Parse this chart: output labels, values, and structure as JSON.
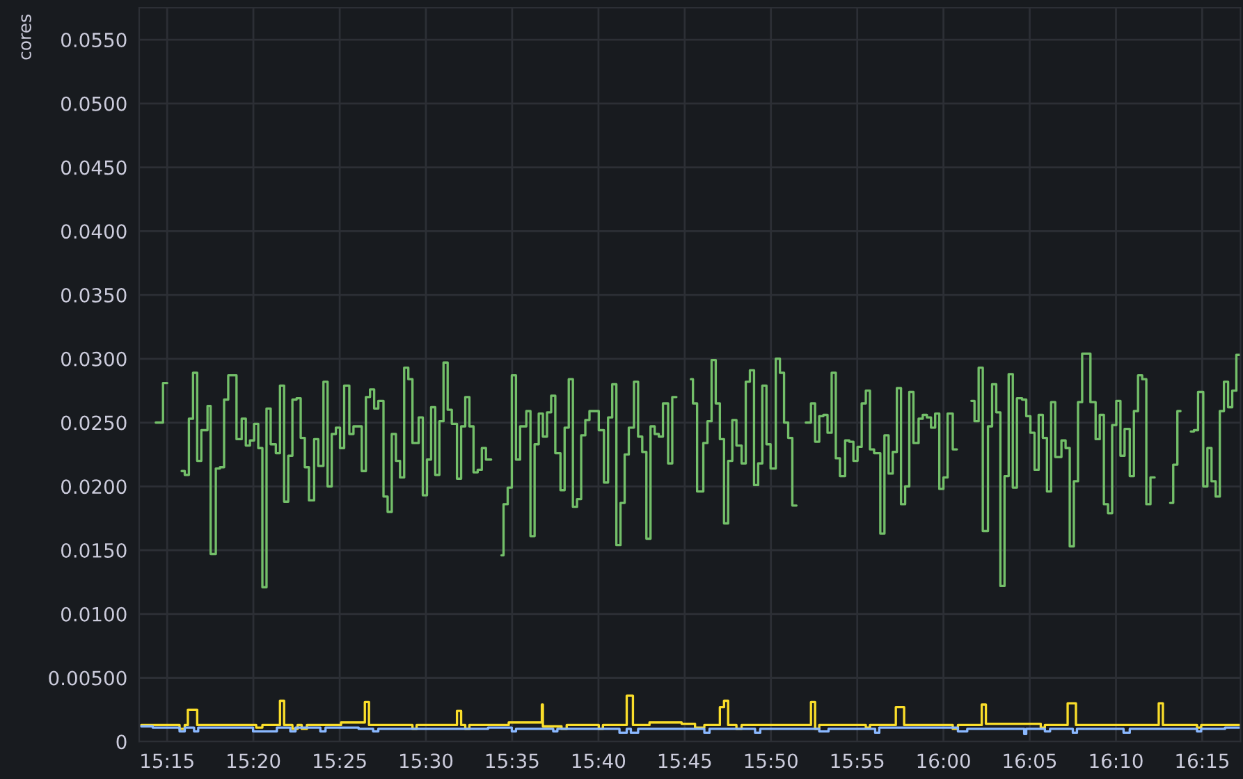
{
  "chart_data": {
    "type": "step",
    "ylabel": "cores",
    "grid": true,
    "xlim": [
      15.223,
      16.287
    ],
    "xticks": [
      {
        "value": 15.25,
        "label": "15:15"
      },
      {
        "value": 15.3333,
        "label": "15:20"
      },
      {
        "value": 15.4167,
        "label": "15:25"
      },
      {
        "value": 15.5,
        "label": "15:30"
      },
      {
        "value": 15.5833,
        "label": "15:35"
      },
      {
        "value": 15.6667,
        "label": "15:40"
      },
      {
        "value": 15.75,
        "label": "15:45"
      },
      {
        "value": 15.8333,
        "label": "15:50"
      },
      {
        "value": 15.9167,
        "label": "15:55"
      },
      {
        "value": 16.0,
        "label": "16:00"
      },
      {
        "value": 16.0833,
        "label": "16:05"
      },
      {
        "value": 16.1667,
        "label": "16:10"
      },
      {
        "value": 16.25,
        "label": "16:15"
      }
    ],
    "ylim": [
      0,
      0.0575
    ],
    "yticks": [
      0,
      {
        "value": 0.005,
        "label": "0.00500"
      },
      {
        "value": 0.01,
        "label": "0.0100"
      },
      {
        "value": 0.015,
        "label": "0.0150"
      },
      {
        "value": 0.02,
        "label": "0.0200"
      },
      {
        "value": 0.025,
        "label": "0.0250"
      },
      {
        "value": 0.03,
        "label": "0.0300"
      },
      {
        "value": 0.035,
        "label": "0.0350"
      },
      {
        "value": 0.04,
        "label": "0.0400"
      },
      {
        "value": 0.045,
        "label": "0.0450"
      },
      {
        "value": 0.05,
        "label": "0.0500"
      },
      {
        "value": 0.055,
        "label": "0.0550"
      }
    ],
    "series": [
      {
        "color": "#73bf69",
        "x": [
          15.239,
          15.246,
          15.25,
          15.264,
          15.267,
          15.271,
          15.275,
          15.279,
          15.283,
          15.289,
          15.292,
          15.297,
          15.301,
          15.305,
          15.309,
          15.317,
          15.322,
          15.326,
          15.33,
          15.334,
          15.338,
          15.342,
          15.346,
          15.35,
          15.355,
          15.359,
          15.363,
          15.367,
          15.371,
          15.375,
          15.379,
          15.383,
          15.387,
          15.392,
          15.396,
          15.401,
          15.405,
          15.409,
          15.413,
          15.417,
          15.421,
          15.426,
          15.43,
          15.438,
          15.442,
          15.446,
          15.45,
          15.454,
          15.459,
          15.463,
          15.467,
          15.471,
          15.475,
          15.479,
          15.483,
          15.487,
          15.493,
          15.497,
          15.501,
          15.505,
          15.509,
          15.513,
          15.517,
          15.521,
          15.525,
          15.53,
          15.534,
          15.538,
          15.542,
          15.546,
          15.55,
          15.554,
          15.558,
          15.563,
          15.573,
          15.575,
          15.579,
          15.583,
          15.587,
          15.591,
          15.597,
          15.601,
          15.605,
          15.609,
          15.613,
          15.617,
          15.621,
          15.625,
          15.63,
          15.634,
          15.638,
          15.642,
          15.646,
          15.65,
          15.654,
          15.658,
          15.667,
          15.672,
          15.676,
          15.68,
          15.684,
          15.688,
          15.692,
          15.696,
          15.701,
          15.705,
          15.709,
          15.713,
          15.717,
          15.721,
          15.725,
          15.729,
          15.734,
          15.738,
          15.742,
          15.756,
          15.758,
          15.762,
          15.768,
          15.772,
          15.776,
          15.78,
          15.784,
          15.788,
          15.792,
          15.796,
          15.8,
          15.805,
          15.809,
          15.813,
          15.817,
          15.821,
          15.825,
          15.829,
          15.833,
          15.838,
          15.842,
          15.846,
          15.85,
          15.854,
          15.858,
          15.867,
          15.872,
          15.876,
          15.88,
          15.884,
          15.888,
          15.892,
          15.896,
          15.9,
          15.905,
          15.909,
          15.913,
          15.917,
          15.921,
          15.925,
          15.929,
          15.933,
          15.939,
          15.943,
          15.947,
          15.951,
          15.955,
          15.959,
          15.963,
          15.967,
          15.971,
          15.976,
          15.98,
          15.984,
          15.988,
          15.992,
          15.996,
          16.0,
          16.004,
          16.009,
          16.013,
          16.027,
          16.03,
          16.034,
          16.038,
          16.043,
          16.047,
          16.051,
          16.055,
          16.059,
          16.063,
          16.067,
          16.071,
          16.076,
          16.08,
          16.084,
          16.088,
          16.092,
          16.096,
          16.1,
          16.104,
          16.108,
          16.114,
          16.118,
          16.122,
          16.126,
          16.13,
          16.134,
          16.142,
          16.147,
          16.151,
          16.155,
          16.159,
          16.163,
          16.167,
          16.171,
          16.175,
          16.18,
          16.184,
          16.188,
          16.192,
          16.196,
          16.2,
          16.204,
          16.219,
          16.222,
          16.226,
          16.229,
          16.239,
          16.242,
          16.246,
          16.251,
          16.255,
          16.259,
          16.263,
          16.267,
          16.271,
          16.275,
          16.279,
          16.283,
          16.287
        ],
        "values": [
          0.025,
          0.0281,
          null,
          0.0212,
          0.0209,
          0.0253,
          0.0289,
          0.022,
          0.0244,
          0.0263,
          0.0147,
          0.0214,
          0.0215,
          0.0268,
          0.0287,
          0.0237,
          0.0253,
          0.0232,
          0.0236,
          0.0249,
          0.023,
          0.0121,
          0.0261,
          0.0233,
          0.0226,
          0.0279,
          0.0188,
          0.0224,
          0.0268,
          0.0269,
          0.0238,
          0.0215,
          0.0189,
          0.0237,
          0.0216,
          0.0282,
          0.02,
          0.0241,
          0.0246,
          0.023,
          0.0279,
          0.0241,
          0.0247,
          0.0212,
          0.027,
          0.0276,
          0.0261,
          0.0267,
          0.0192,
          0.018,
          0.0241,
          0.022,
          0.0207,
          0.0293,
          0.0284,
          0.0234,
          0.0254,
          0.0193,
          0.0221,
          0.0262,
          0.0209,
          0.0251,
          0.0297,
          0.026,
          0.0249,
          0.0206,
          0.0247,
          0.027,
          0.0247,
          0.0211,
          0.0213,
          0.023,
          0.0221,
          null,
          0.0146,
          0.0186,
          0.0199,
          0.0287,
          0.0221,
          0.0247,
          0.0259,
          0.0161,
          0.0233,
          0.0257,
          0.0239,
          0.0258,
          0.0271,
          0.0226,
          0.0197,
          0.0246,
          0.0284,
          0.0184,
          0.019,
          0.024,
          0.0252,
          0.0259,
          0.0244,
          0.0203,
          0.0254,
          0.028,
          0.0154,
          0.0187,
          0.0225,
          0.0246,
          0.0282,
          0.0239,
          0.0227,
          0.0159,
          0.0247,
          0.0241,
          0.0239,
          0.0265,
          0.0218,
          0.027,
          null,
          0.0284,
          0.0265,
          0.0196,
          0.0234,
          0.0251,
          0.0299,
          0.0265,
          0.0237,
          0.0171,
          0.022,
          0.0252,
          0.0232,
          0.0218,
          0.0282,
          0.0291,
          0.0201,
          0.0218,
          0.0279,
          0.0233,
          0.0214,
          0.03,
          0.0289,
          0.025,
          0.0238,
          0.0185,
          null,
          0.025,
          0.0265,
          0.0235,
          0.0255,
          0.0256,
          0.0242,
          0.0289,
          0.0222,
          0.0208,
          0.0236,
          0.0235,
          0.022,
          0.0231,
          0.0265,
          0.0275,
          0.0229,
          0.0226,
          0.0163,
          0.024,
          0.021,
          0.0227,
          0.0277,
          0.0186,
          0.02,
          0.0274,
          0.0234,
          0.0253,
          0.0256,
          0.0254,
          0.0246,
          0.0257,
          0.0198,
          0.0207,
          0.0257,
          0.0229,
          null,
          0.0267,
          0.0251,
          0.0293,
          0.0165,
          0.0247,
          0.028,
          0.0258,
          0.0122,
          0.0208,
          0.0288,
          0.0199,
          0.0269,
          0.0268,
          0.0255,
          0.0242,
          0.0213,
          0.0256,
          0.0238,
          0.0196,
          0.0266,
          0.0223,
          0.0236,
          0.023,
          0.0153,
          0.0204,
          0.0266,
          0.0304,
          0.0266,
          0.0237,
          0.0256,
          0.0186,
          0.0179,
          0.0248,
          0.0267,
          0.0224,
          0.0245,
          0.0208,
          0.0259,
          0.0287,
          0.0284,
          0.0186,
          0.0207,
          null,
          0.0187,
          0.0217,
          0.0259,
          null,
          0.0243,
          0.0244,
          0.0274,
          0.02,
          0.023,
          0.0204,
          0.0192,
          0.0259,
          0.0282,
          0.0262,
          0.0275,
          0.0303,
          0.0303
        ]
      },
      {
        "color": "#fade2a",
        "x": [
          15.225,
          15.262,
          15.267,
          15.27,
          15.279,
          15.336,
          15.342,
          15.359,
          15.363,
          15.371,
          15.376,
          15.38,
          15.385,
          15.418,
          15.441,
          15.445,
          15.487,
          15.491,
          15.53,
          15.534,
          15.538,
          15.542,
          15.58,
          15.612,
          15.613,
          15.631,
          15.636,
          15.667,
          15.671,
          15.694,
          15.7,
          15.716,
          15.747,
          15.76,
          15.769,
          15.784,
          15.788,
          15.792,
          15.8,
          15.805,
          15.872,
          15.876,
          15.88,
          15.925,
          15.929,
          15.954,
          15.962,
          16.009,
          16.014,
          16.037,
          16.041,
          16.094,
          16.098,
          16.12,
          16.128,
          16.208,
          16.212,
          16.245,
          16.249,
          16.287
        ],
        "values": [
          0.0013,
          0.001,
          0.0013,
          0.0025,
          0.0013,
          0.0011,
          0.0013,
          0.0032,
          0.0013,
          0.001,
          0.0013,
          0.001,
          0.0013,
          0.0015,
          0.0031,
          0.0013,
          0.001,
          0.0013,
          0.0024,
          0.0013,
          0.001,
          0.0013,
          0.0015,
          0.0029,
          0.0012,
          0.001,
          0.0013,
          0.001,
          0.0013,
          0.0036,
          0.0013,
          0.0015,
          0.0014,
          0.0011,
          0.0013,
          0.0027,
          0.0032,
          0.0013,
          0.001,
          0.0013,
          0.0031,
          0.001,
          0.0013,
          0.0011,
          0.0013,
          0.0027,
          0.0013,
          0.001,
          0.0013,
          0.0029,
          0.0014,
          0.0011,
          0.0013,
          0.003,
          0.0013,
          0.003,
          0.0013,
          0.0011,
          0.0013,
          0.0013
        ]
      },
      {
        "color": "#8ab8ff",
        "x": [
          15.225,
          15.236,
          15.262,
          15.267,
          15.276,
          15.28,
          15.333,
          15.356,
          15.369,
          15.374,
          15.398,
          15.403,
          15.435,
          15.449,
          15.454,
          15.56,
          15.583,
          15.587,
          15.623,
          15.627,
          15.687,
          15.694,
          15.698,
          15.705,
          15.769,
          15.774,
          15.818,
          15.823,
          15.88,
          15.889,
          15.934,
          15.938,
          16.014,
          16.023,
          16.078,
          16.08,
          16.098,
          16.103,
          16.125,
          16.129,
          16.174,
          16.18,
          16.245,
          16.249,
          16.272,
          16.287
        ],
        "values": [
          0.0012,
          0.0011,
          0.0008,
          0.0011,
          0.0008,
          0.0011,
          0.0008,
          0.0011,
          0.0008,
          0.0011,
          0.0008,
          0.0011,
          0.001,
          0.0008,
          0.001,
          0.0011,
          0.0008,
          0.001,
          0.0008,
          0.001,
          0.0007,
          0.001,
          0.0007,
          0.001,
          0.0007,
          0.001,
          0.0007,
          0.001,
          0.0008,
          0.001,
          0.0007,
          0.0011,
          0.0008,
          0.001,
          0.0006,
          0.001,
          0.0008,
          0.001,
          0.0007,
          0.001,
          0.0007,
          0.001,
          0.0008,
          0.001,
          0.0011,
          0.0011
        ]
      }
    ]
  }
}
